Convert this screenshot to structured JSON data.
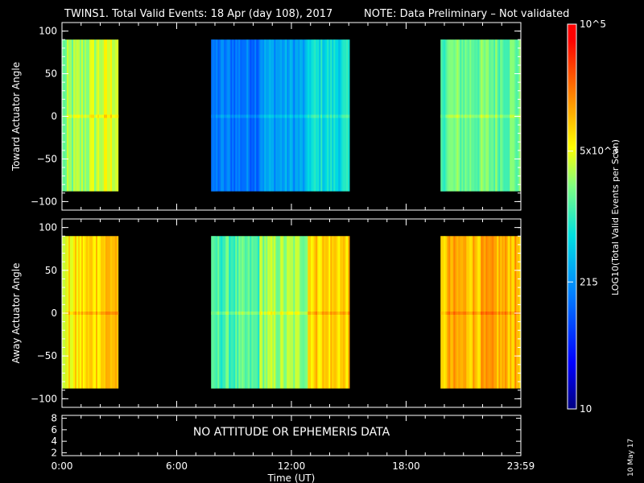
{
  "header": {
    "title": "TWINS1. Total Valid Events: 18 Apr (day 108), 2017",
    "note": "NOTE: Data Preliminary – Not validated",
    "note_color": "#ff2020"
  },
  "chart_data": [
    {
      "type": "heatmap",
      "panel": "top",
      "ylabel": "Toward Actuator Angle",
      "ylim": [
        -110,
        110
      ],
      "yticks": [
        "100",
        "50",
        "0",
        "−50",
        "−100"
      ],
      "ytick_values": [
        100,
        50,
        0,
        -50,
        -100
      ],
      "xlim": [
        0,
        24
      ],
      "data_extent_y": [
        -88,
        90
      ],
      "segments": [
        {
          "start_hour": 0.0,
          "end_hour": 2.9,
          "level": 0.62
        },
        {
          "start_hour": 7.8,
          "end_hour": 15.0,
          "level": 0.35
        },
        {
          "start_hour": 19.8,
          "end_hour": 24.0,
          "level": 0.56
        }
      ]
    },
    {
      "type": "heatmap",
      "panel": "middle",
      "ylabel": "Away Actuator Angle",
      "ylim": [
        -110,
        110
      ],
      "yticks": [
        "100",
        "50",
        "0",
        "−50",
        "−100"
      ],
      "ytick_values": [
        100,
        50,
        0,
        -50,
        -100
      ],
      "xlim": [
        0,
        24
      ],
      "data_extent_y": [
        -88,
        90
      ],
      "segments": [
        {
          "start_hour": 0.0,
          "end_hour": 2.9,
          "level": 0.72
        },
        {
          "start_hour": 7.8,
          "end_hour": 15.0,
          "level": 0.6
        },
        {
          "start_hour": 19.8,
          "end_hour": 24.0,
          "level": 0.76
        }
      ]
    },
    {
      "type": "line",
      "panel": "bottom",
      "yticks": [
        "8",
        "6",
        "4",
        "2"
      ],
      "ytick_values": [
        8,
        6,
        4,
        2
      ],
      "ylim": [
        1.5,
        8.5
      ],
      "message": "NO ATTITUDE OR EPHEMERIS DATA"
    }
  ],
  "xaxis": {
    "label": "Time (UT)",
    "ticks": [
      "0:00",
      "6:00",
      "12:00",
      "18:00",
      "23:59"
    ],
    "tick_hours": [
      0,
      6,
      12,
      18,
      24
    ]
  },
  "colorbar": {
    "title": "LOG10(Total Valid Events per Scan)",
    "tick_labels": [
      "10^5",
      "5x10^3",
      "215",
      "10"
    ],
    "tick_levels": [
      1.0,
      0.67,
      0.33,
      0.0
    ],
    "range": [
      10,
      100000
    ],
    "scale": "log"
  },
  "footer": {
    "date_stamp": "10 May 17"
  }
}
